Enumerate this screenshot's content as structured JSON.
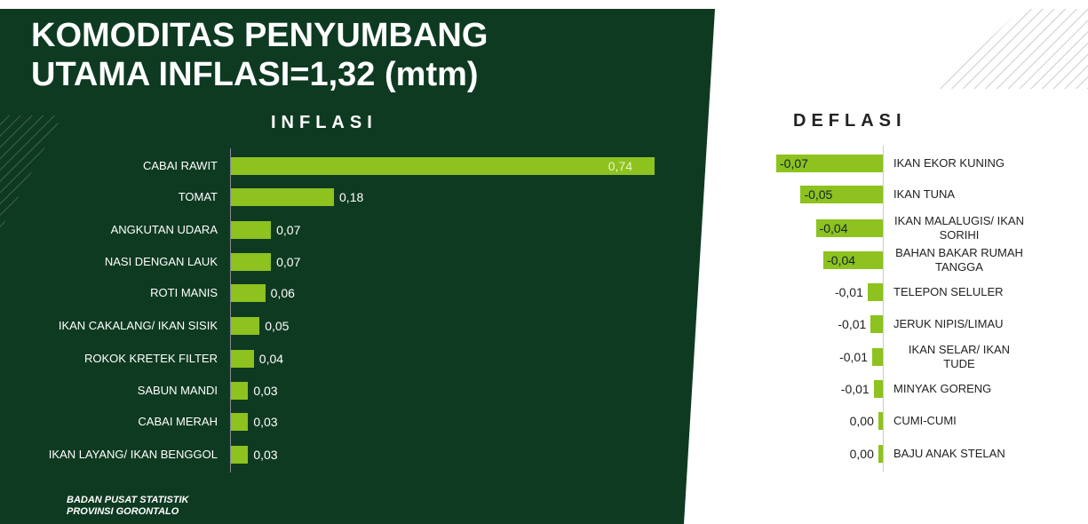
{
  "title": [
    "KOMODITAS PENYUMBANG",
    "UTAMA INFLASI=1,32 (mtm)"
  ],
  "footer": [
    "BADAN PUSAT STATISTIK",
    "PROVINSI GORONTALO"
  ],
  "chart_data": [
    {
      "type": "bar",
      "orientation": "horizontal",
      "title": "INFLASI",
      "color": "#8dc21f",
      "categories": [
        "CABAI RAWIT",
        "TOMAT",
        "ANGKUTAN UDARA",
        "NASI DENGAN LAUK",
        "ROTI MANIS",
        "IKAN CAKALANG/ IKAN SISIK",
        "ROKOK KRETEK FILTER",
        "SABUN MANDI",
        "CABAI MERAH",
        "IKAN LAYANG/ IKAN BENGGOL"
      ],
      "values": [
        0.74,
        0.18,
        0.07,
        0.07,
        0.06,
        0.05,
        0.04,
        0.03,
        0.03,
        0.03
      ],
      "value_labels": [
        "0,74",
        "0,18",
        "0,07",
        "0,07",
        "0,06",
        "0,05",
        "0,04",
        "0,03",
        "0,03",
        "0,03"
      ]
    },
    {
      "type": "bar",
      "orientation": "horizontal",
      "title": "DEFLASI",
      "color": "#8dc21f",
      "categories": [
        "IKAN EKOR KUNING",
        "IKAN TUNA",
        "IKAN MALALUGIS/ IKAN SORIHI",
        "BAHAN BAKAR RUMAH TANGGA",
        "TELEPON SELULER",
        "JERUK NIPIS/LIMAU",
        "IKAN SELAR/ IKAN TUDE",
        "MINYAK GORENG",
        "CUMI-CUMI",
        "BAJU ANAK STELAN"
      ],
      "values": [
        -0.07,
        -0.054,
        -0.044,
        -0.039,
        -0.01,
        -0.008,
        -0.007,
        -0.006,
        -0.003,
        -0.003
      ],
      "value_labels": [
        "-0,07",
        "-0,05",
        "-0,04",
        "-0,04",
        "-0,01",
        "-0,01",
        "-0,01",
        "-0,01",
        "0,00",
        "0,00"
      ]
    }
  ]
}
